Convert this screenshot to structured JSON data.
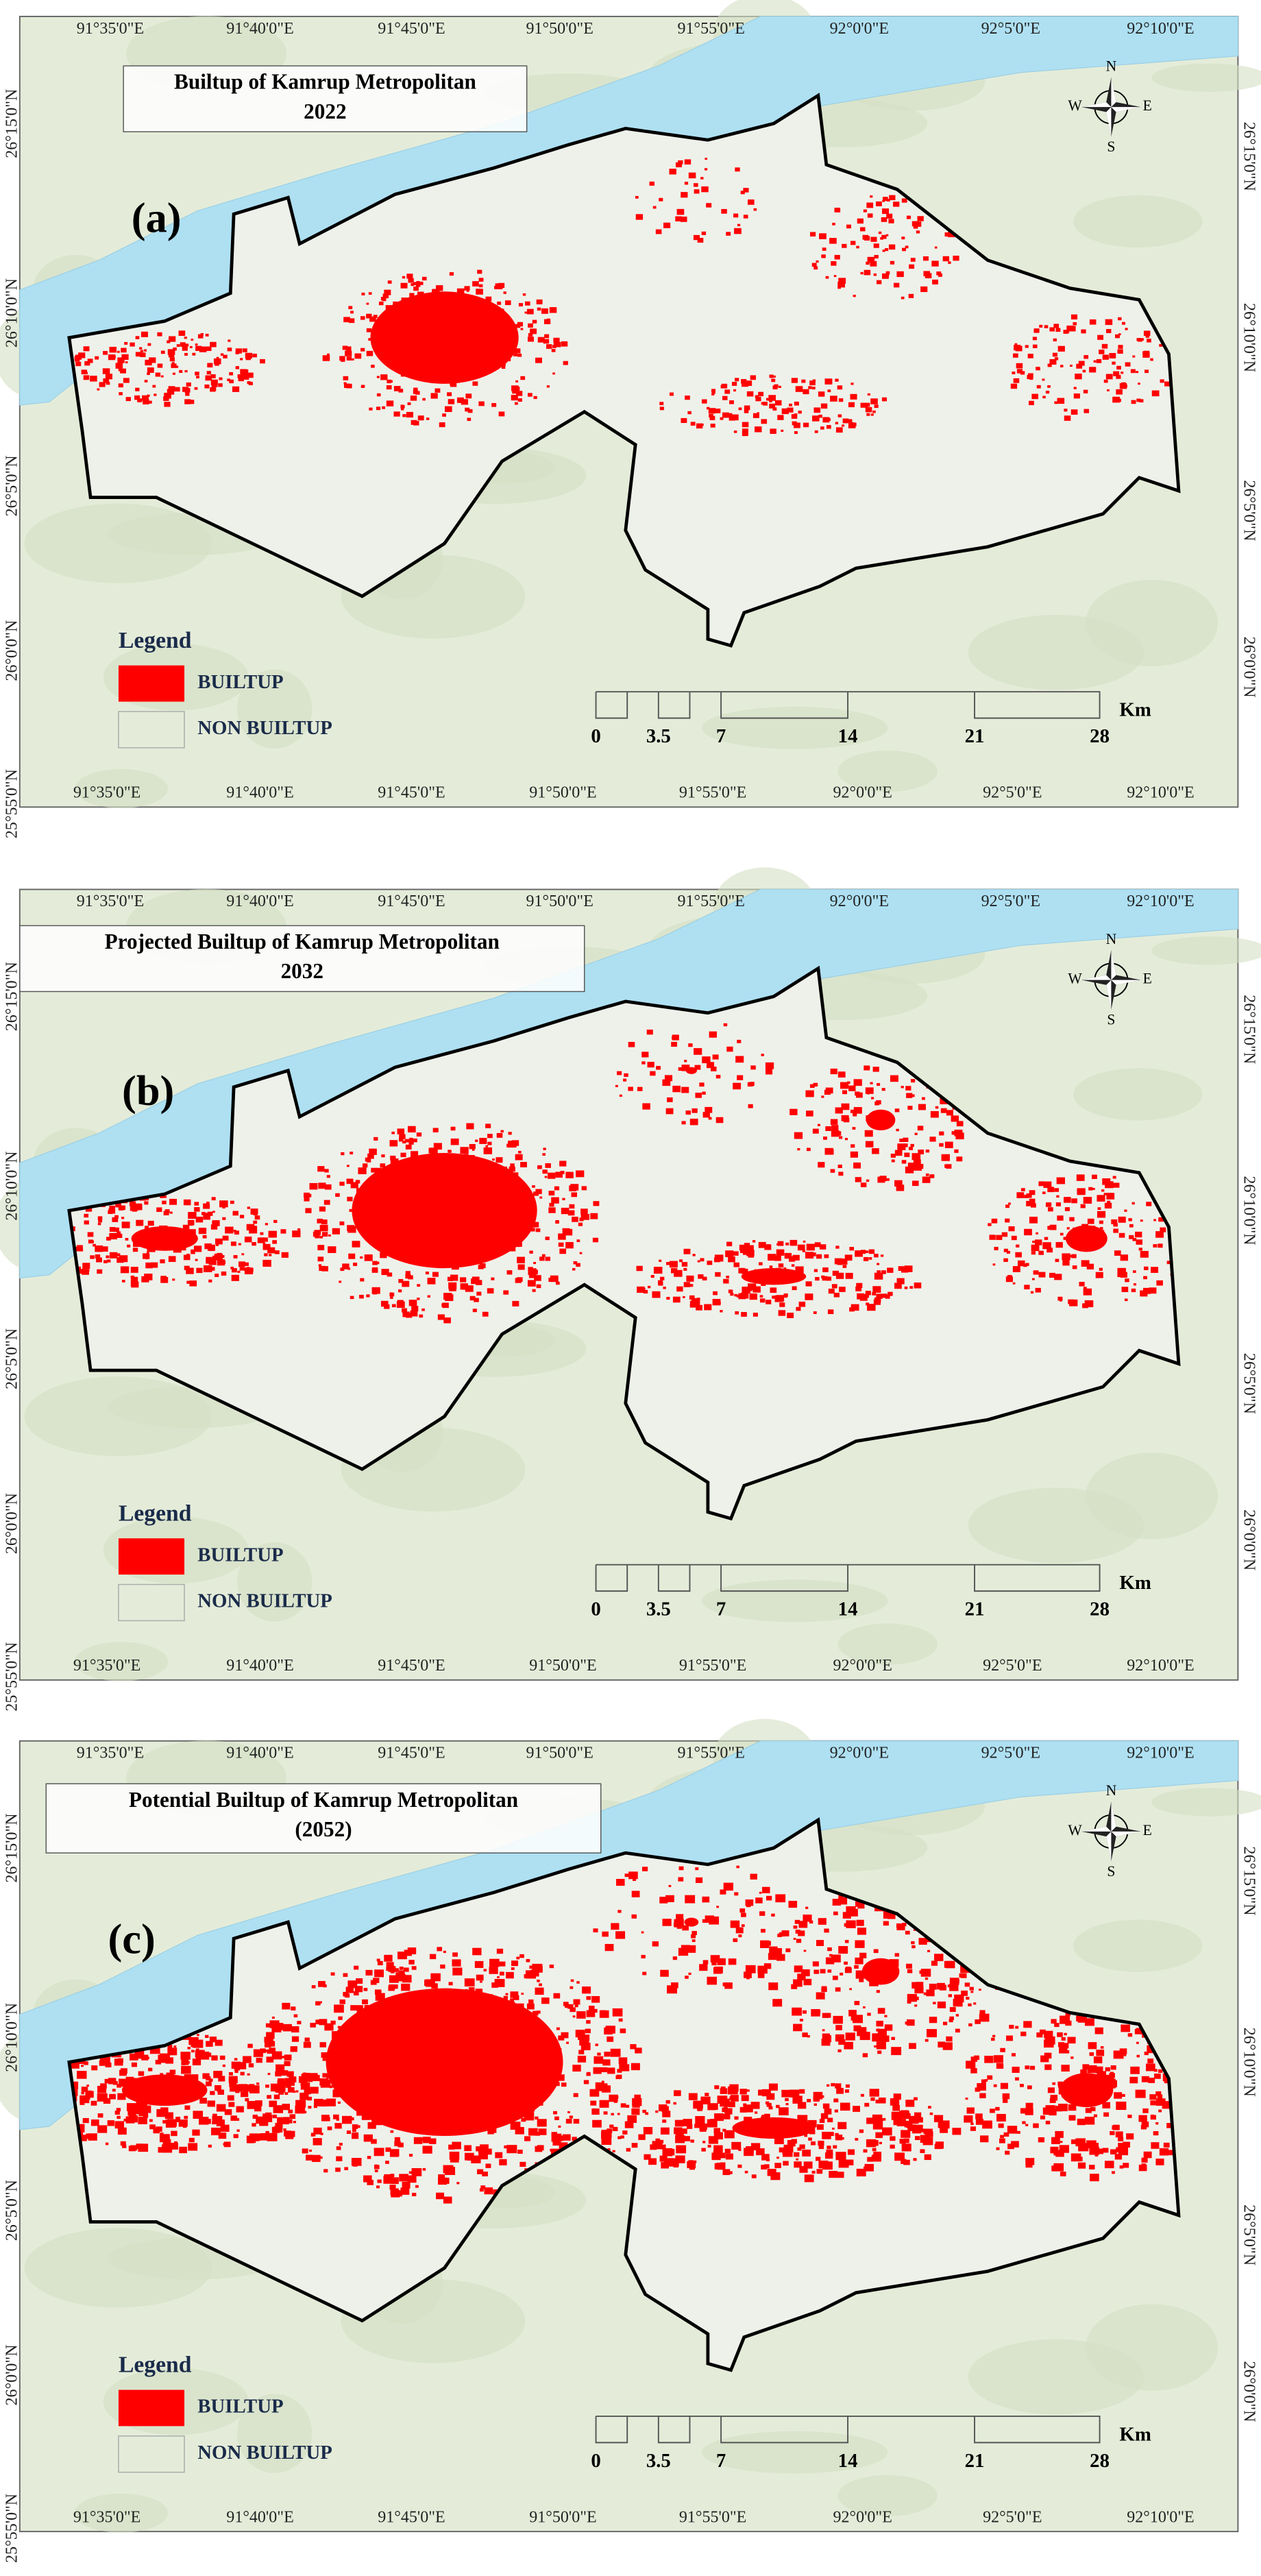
{
  "panels": [
    {
      "label": "(a)",
      "title": [
        "Builtup of Kamrup Metropolitan",
        "2022"
      ],
      "legend": {
        "title": "Legend",
        "items": [
          "BUILTUP",
          "NON BUILTUP"
        ]
      },
      "scale": {
        "labels": [
          "0",
          "3.5",
          "7",
          "14",
          "21",
          "28"
        ],
        "unit": "Km"
      },
      "compass": [
        "N",
        "E",
        "S",
        "W"
      ],
      "top_lon": [
        "91°35'0\"E",
        "91°40'0\"E",
        "91°45'0\"E",
        "91°50'0\"E",
        "91°55'0\"E",
        "92°0'0\"E",
        "92°5'0\"E",
        "92°10'0\"E"
      ],
      "bottom_lon": [
        "91°35'0\"E",
        "91°40'0\"E",
        "91°45'0\"E",
        "91°50'0\"E",
        "91°55'0\"E",
        "92°0'0\"E",
        "92°5'0\"E",
        "92°10'0\"E"
      ],
      "left_lat": [
        "26°15'0\"N",
        "26°10'0\"N",
        "26°5'0\"N",
        "26°0'0\"N",
        "25°55'0\"N"
      ],
      "right_lat": [
        "26°15'0\"N",
        "26°10'0\"N",
        "26°5'0\"N",
        "26°0'0\"N"
      ]
    },
    {
      "label": "(b)",
      "title": [
        "Projected Builtup of Kamrup Metropolitan",
        "2032"
      ],
      "legend": {
        "title": "Legend",
        "items": [
          "BUILTUP",
          "NON BUILTUP"
        ]
      },
      "scale": {
        "labels": [
          "0",
          "3.5",
          "7",
          "14",
          "21",
          "28"
        ],
        "unit": "Km"
      },
      "compass": [
        "N",
        "E",
        "S",
        "W"
      ],
      "top_lon": [
        "91°35'0\"E",
        "91°40'0\"E",
        "91°45'0\"E",
        "91°50'0\"E",
        "91°55'0\"E",
        "92°0'0\"E",
        "92°5'0\"E",
        "92°10'0\"E"
      ],
      "bottom_lon": [
        "91°35'0\"E",
        "91°40'0\"E",
        "91°45'0\"E",
        "91°50'0\"E",
        "91°55'0\"E",
        "92°0'0\"E",
        "92°5'0\"E",
        "92°10'0\"E"
      ],
      "left_lat": [
        "26°15'0\"N",
        "26°10'0\"N",
        "26°5'0\"N",
        "26°0'0\"N",
        "25°55'0\"N"
      ],
      "right_lat": [
        "26°15'0\"N",
        "26°10'0\"N",
        "26°5'0\"N",
        "26°0'0\"N"
      ]
    },
    {
      "label": "(c)",
      "title": [
        "Potential Builtup of Kamrup Metropolitan",
        "(2052)"
      ],
      "legend": {
        "title": "Legend",
        "items": [
          "BUILTUP",
          "NON BUILTUP"
        ]
      },
      "scale": {
        "labels": [
          "0",
          "3.5",
          "7",
          "14",
          "21",
          "28"
        ],
        "unit": "Km"
      },
      "compass": [
        "N",
        "E",
        "S",
        "W"
      ],
      "top_lon": [
        "91°35'0\"E",
        "91°40'0\"E",
        "91°45'0\"E",
        "91°50'0\"E",
        "91°55'0\"E",
        "92°0'0\"E",
        "92°5'0\"E",
        "92°10'0\"E"
      ],
      "bottom_lon": [
        "91°35'0\"E",
        "91°40'0\"E",
        "91°45'0\"E",
        "91°50'0\"E",
        "91°55'0\"E",
        "92°0'0\"E",
        "92°5'0\"E",
        "92°10'0\"E"
      ],
      "left_lat": [
        "26°15'0\"N",
        "26°10'0\"N",
        "26°5'0\"N",
        "26°0'0\"N",
        "25°55'0\"N"
      ],
      "right_lat": [
        "26°15'0\"N",
        "26°10'0\"N",
        "26°5'0\"N",
        "26°0'0\"N"
      ]
    }
  ]
}
